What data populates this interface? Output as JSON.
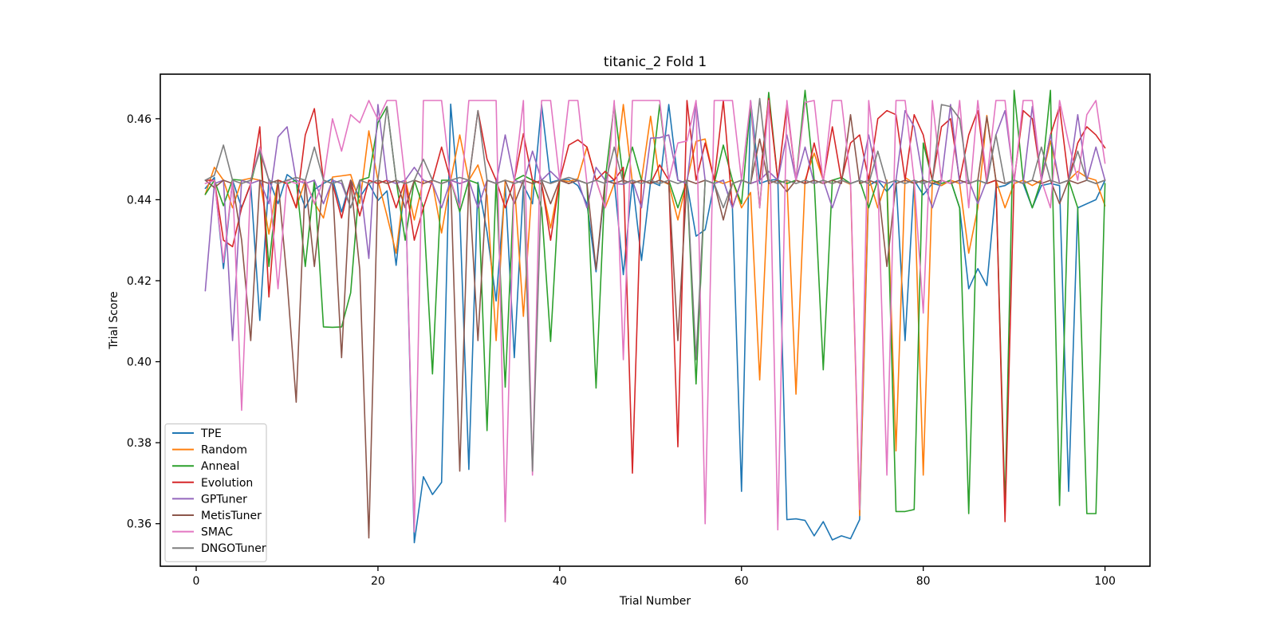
{
  "figure": {
    "title": "titanic_2 Fold 1",
    "xlabel": "Trial Number",
    "ylabel": "Trial Score"
  },
  "chart_data": {
    "type": "line",
    "title": "titanic_2 Fold 1",
    "xlabel": "Trial Number",
    "ylabel": "Trial Score",
    "grid": false,
    "legend_position": "lower left",
    "x_start": 1,
    "xlim": [
      -3.95,
      104.95
    ],
    "ylim": [
      0.3495,
      0.471
    ],
    "x_ticks": [
      0,
      20,
      40,
      60,
      80,
      100
    ],
    "y_ticks": [
      0.36,
      0.38,
      0.4,
      0.42,
      0.44,
      0.46
    ],
    "background": "#ffffff",
    "spine_color": "#000000",
    "legend_edge_color": "#cccccc",
    "series": [
      {
        "name": "TPE",
        "color": "#1f77b4",
        "values": [
          0.4428,
          0.4455,
          0.423,
          0.4448,
          0.438,
          0.4438,
          0.4102,
          0.4451,
          0.439,
          0.4462,
          0.4445,
          0.438,
          0.4425,
          0.444,
          0.4452,
          0.437,
          0.4448,
          0.4406,
          0.444,
          0.4398,
          0.4422,
          0.4238,
          0.4448,
          0.3553,
          0.3716,
          0.3672,
          0.3702,
          0.4636,
          0.437,
          0.3734,
          0.4443,
          0.432,
          0.415,
          0.4436,
          0.401,
          0.4436,
          0.439,
          0.4635,
          0.4443,
          0.4449,
          0.445,
          0.4435,
          0.439,
          0.4222,
          0.4442,
          0.4448,
          0.4215,
          0.4448,
          0.425,
          0.4445,
          0.4435,
          0.4635,
          0.4448,
          0.444,
          0.431,
          0.4326,
          0.444,
          0.4448,
          0.438,
          0.368,
          0.4645,
          0.444,
          0.4448,
          0.445,
          0.361,
          0.3612,
          0.3608,
          0.357,
          0.3605,
          0.356,
          0.357,
          0.3563,
          0.361,
          0.4435,
          0.4448,
          0.442,
          0.4448,
          0.4052,
          0.4448,
          0.4412,
          0.444,
          0.4435,
          0.4448,
          0.438,
          0.418,
          0.423,
          0.4188,
          0.443,
          0.4435,
          0.4448,
          0.444,
          0.438,
          0.4435,
          0.444,
          0.4435,
          0.368,
          0.438,
          0.439,
          0.44,
          0.4448
        ]
      },
      {
        "name": "Random",
        "color": "#ff7f0e",
        "values": [
          0.4413,
          0.448,
          0.4448,
          0.438,
          0.4448,
          0.4453,
          0.4448,
          0.4315,
          0.4448,
          0.4439,
          0.438,
          0.4448,
          0.4392,
          0.4355,
          0.4456,
          0.4459,
          0.4462,
          0.4391,
          0.457,
          0.4448,
          0.436,
          0.4268,
          0.4452,
          0.435,
          0.4448,
          0.4441,
          0.4318,
          0.4448,
          0.456,
          0.4448,
          0.4486,
          0.441,
          0.4052,
          0.4448,
          0.4442,
          0.4112,
          0.4448,
          0.4438,
          0.433,
          0.4448,
          0.4445,
          0.4452,
          0.453,
          0.4448,
          0.438,
          0.444,
          0.4635,
          0.4442,
          0.4448,
          0.4606,
          0.4448,
          0.4438,
          0.435,
          0.4448,
          0.4544,
          0.455,
          0.4448,
          0.444,
          0.4448,
          0.438,
          0.4418,
          0.3955,
          0.4448,
          0.444,
          0.4448,
          0.392,
          0.4448,
          0.4515,
          0.4448,
          0.444,
          0.4448,
          0.4438,
          0.362,
          0.4455,
          0.438,
          0.4448,
          0.378,
          0.4455,
          0.444,
          0.372,
          0.4448,
          0.4435,
          0.4448,
          0.444,
          0.4268,
          0.438,
          0.4608,
          0.4448,
          0.438,
          0.444,
          0.4448,
          0.4435,
          0.4448,
          0.4545,
          0.444,
          0.4448,
          0.447,
          0.4455,
          0.4448,
          0.4385
        ]
      },
      {
        "name": "Anneal",
        "color": "#2ca02c",
        "values": [
          0.4413,
          0.4448,
          0.4385,
          0.445,
          0.4448,
          0.444,
          0.4528,
          0.4235,
          0.4448,
          0.444,
          0.4448,
          0.4235,
          0.4448,
          0.4086,
          0.4085,
          0.4086,
          0.417,
          0.4448,
          0.4455,
          0.459,
          0.463,
          0.4448,
          0.43,
          0.4448,
          0.438,
          0.397,
          0.4448,
          0.4448,
          0.437,
          0.4448,
          0.444,
          0.383,
          0.4448,
          0.3937,
          0.4448,
          0.446,
          0.4448,
          0.438,
          0.405,
          0.4448,
          0.444,
          0.4448,
          0.444,
          0.3935,
          0.4448,
          0.4635,
          0.4448,
          0.453,
          0.4448,
          0.444,
          0.4635,
          0.4448,
          0.438,
          0.4448,
          0.3945,
          0.4448,
          0.444,
          0.4535,
          0.4448,
          0.439,
          0.4635,
          0.438,
          0.4665,
          0.4448,
          0.444,
          0.4448,
          0.467,
          0.4448,
          0.398,
          0.4448,
          0.4455,
          0.444,
          0.4448,
          0.438,
          0.4448,
          0.444,
          0.363,
          0.363,
          0.3635,
          0.454,
          0.4448,
          0.444,
          0.4448,
          0.438,
          0.3625,
          0.4448,
          0.444,
          0.4448,
          0.364,
          0.467,
          0.4448,
          0.438,
          0.4448,
          0.467,
          0.3645,
          0.4448,
          0.438,
          0.3625,
          0.3625,
          0.444
        ]
      },
      {
        "name": "Evolution",
        "color": "#d62728",
        "values": [
          0.4448,
          0.4448,
          0.43,
          0.4284,
          0.438,
          0.444,
          0.458,
          0.416,
          0.4448,
          0.444,
          0.438,
          0.456,
          0.4625,
          0.4448,
          0.444,
          0.4355,
          0.4448,
          0.436,
          0.4448,
          0.444,
          0.4448,
          0.438,
          0.4448,
          0.43,
          0.438,
          0.4448,
          0.453,
          0.4448,
          0.444,
          0.4448,
          0.462,
          0.45,
          0.4448,
          0.438,
          0.4448,
          0.4563,
          0.4448,
          0.444,
          0.43,
          0.4448,
          0.4535,
          0.4548,
          0.453,
          0.4448,
          0.447,
          0.4448,
          0.448,
          0.3725,
          0.4448,
          0.444,
          0.4486,
          0.4448,
          0.379,
          0.4645,
          0.4448,
          0.454,
          0.4448,
          0.4645,
          0.438,
          0.4448,
          0.444,
          0.4448,
          0.465,
          0.4448,
          0.4635,
          0.4448,
          0.444,
          0.454,
          0.4448,
          0.458,
          0.4448,
          0.454,
          0.456,
          0.4448,
          0.46,
          0.462,
          0.461,
          0.4448,
          0.461,
          0.456,
          0.4448,
          0.458,
          0.46,
          0.4448,
          0.456,
          0.462,
          0.444,
          0.4448,
          0.3605,
          0.4448,
          0.462,
          0.46,
          0.4448,
          0.456,
          0.463,
          0.4448,
          0.454,
          0.458,
          0.456,
          0.4528
        ]
      },
      {
        "name": "GPTuner",
        "color": "#9467bd",
        "values": [
          0.4175,
          0.444,
          0.4448,
          0.4052,
          0.4448,
          0.444,
          0.4448,
          0.439,
          0.4555,
          0.458,
          0.4448,
          0.444,
          0.4448,
          0.439,
          0.4448,
          0.444,
          0.438,
          0.4448,
          0.4255,
          0.4635,
          0.4448,
          0.444,
          0.4448,
          0.448,
          0.4448,
          0.444,
          0.438,
          0.4448,
          0.444,
          0.4448,
          0.438,
          0.4448,
          0.444,
          0.456,
          0.4448,
          0.444,
          0.452,
          0.4448,
          0.447,
          0.4448,
          0.444,
          0.4448,
          0.438,
          0.448,
          0.4448,
          0.444,
          0.4438,
          0.4448,
          0.438,
          0.4552,
          0.4553,
          0.456,
          0.4448,
          0.444,
          0.464,
          0.4448,
          0.444,
          0.4448,
          0.438,
          0.4448,
          0.444,
          0.4448,
          0.447,
          0.4448,
          0.456,
          0.4448,
          0.453,
          0.444,
          0.4448,
          0.438,
          0.4448,
          0.444,
          0.4448,
          0.456,
          0.4448,
          0.444,
          0.4448,
          0.462,
          0.458,
          0.4448,
          0.438,
          0.4448,
          0.4635,
          0.444,
          0.4448,
          0.439,
          0.4448,
          0.456,
          0.462,
          0.4448,
          0.444,
          0.463,
          0.4448,
          0.456,
          0.444,
          0.4448,
          0.461,
          0.4448,
          0.453,
          0.4448
        ]
      },
      {
        "name": "MetisTuner",
        "color": "#8c564b",
        "values": [
          0.4448,
          0.443,
          0.4448,
          0.444,
          0.43,
          0.4052,
          0.4448,
          0.444,
          0.4448,
          0.42,
          0.39,
          0.4448,
          0.4235,
          0.4448,
          0.444,
          0.401,
          0.4448,
          0.4228,
          0.3565,
          0.4448,
          0.444,
          0.4448,
          0.438,
          0.4448,
          0.444,
          0.4448,
          0.444,
          0.4448,
          0.373,
          0.4448,
          0.4052,
          0.4448,
          0.444,
          0.4448,
          0.439,
          0.4448,
          0.444,
          0.4448,
          0.439,
          0.4448,
          0.444,
          0.4448,
          0.444,
          0.4228,
          0.4448,
          0.444,
          0.4448,
          0.444,
          0.4448,
          0.444,
          0.4448,
          0.444,
          0.4052,
          0.4448,
          0.444,
          0.4448,
          0.444,
          0.435,
          0.444,
          0.4448,
          0.444,
          0.455,
          0.444,
          0.4448,
          0.442,
          0.4448,
          0.444,
          0.4448,
          0.444,
          0.4448,
          0.444,
          0.461,
          0.444,
          0.4448,
          0.444,
          0.4235,
          0.444,
          0.4448,
          0.444,
          0.4448,
          0.444,
          0.4448,
          0.444,
          0.4448,
          0.444,
          0.4448,
          0.4605,
          0.4448,
          0.444,
          0.4448,
          0.444,
          0.4448,
          0.444,
          0.4448,
          0.439,
          0.4448,
          0.444,
          0.4448,
          0.444,
          0.4448
        ]
      },
      {
        "name": "SMAC",
        "color": "#e377c2",
        "values": [
          0.444,
          0.4448,
          0.4245,
          0.4448,
          0.388,
          0.4448,
          0.453,
          0.4448,
          0.418,
          0.4448,
          0.444,
          0.4448,
          0.439,
          0.4448,
          0.46,
          0.452,
          0.461,
          0.459,
          0.4645,
          0.4598,
          0.4645,
          0.4645,
          0.4448,
          0.358,
          0.4645,
          0.4645,
          0.4645,
          0.4448,
          0.438,
          0.4645,
          0.4645,
          0.4645,
          0.4645,
          0.3605,
          0.4448,
          0.4645,
          0.372,
          0.4645,
          0.4645,
          0.4448,
          0.4645,
          0.4645,
          0.444,
          0.4448,
          0.438,
          0.4645,
          0.4005,
          0.4645,
          0.4645,
          0.4645,
          0.4645,
          0.4448,
          0.454,
          0.4545,
          0.4645,
          0.36,
          0.4645,
          0.4645,
          0.4645,
          0.4448,
          0.4645,
          0.438,
          0.4645,
          0.3585,
          0.4645,
          0.4448,
          0.464,
          0.4645,
          0.444,
          0.4645,
          0.4645,
          0.4448,
          0.3635,
          0.4645,
          0.4448,
          0.372,
          0.4645,
          0.4645,
          0.4448,
          0.412,
          0.4645,
          0.4448,
          0.444,
          0.4645,
          0.438,
          0.4645,
          0.4448,
          0.4645,
          0.4645,
          0.444,
          0.4645,
          0.4645,
          0.4448,
          0.438,
          0.4645,
          0.454,
          0.4448,
          0.461,
          0.4645,
          0.449
        ]
      },
      {
        "name": "DNGOTuner",
        "color": "#7f7f7f",
        "values": [
          0.4448,
          0.446,
          0.4535,
          0.4448,
          0.444,
          0.4448,
          0.452,
          0.4448,
          0.444,
          0.4448,
          0.4455,
          0.4448,
          0.453,
          0.4448,
          0.444,
          0.4448,
          0.438,
          0.4448,
          0.444,
          0.4448,
          0.463,
          0.4448,
          0.444,
          0.4448,
          0.45,
          0.4448,
          0.444,
          0.4448,
          0.4455,
          0.4448,
          0.462,
          0.4448,
          0.444,
          0.4448,
          0.444,
          0.4448,
          0.373,
          0.4448,
          0.444,
          0.4448,
          0.4455,
          0.4448,
          0.444,
          0.4448,
          0.444,
          0.453,
          0.444,
          0.4448,
          0.444,
          0.4448,
          0.444,
          0.4448,
          0.444,
          0.4448,
          0.4005,
          0.4448,
          0.444,
          0.438,
          0.444,
          0.4448,
          0.444,
          0.465,
          0.4448,
          0.444,
          0.4448,
          0.444,
          0.4448,
          0.444,
          0.4448,
          0.444,
          0.4448,
          0.444,
          0.4448,
          0.444,
          0.452,
          0.444,
          0.4448,
          0.444,
          0.4448,
          0.444,
          0.4448,
          0.4635,
          0.463,
          0.46,
          0.444,
          0.4448,
          0.444,
          0.456,
          0.444,
          0.4448,
          0.444,
          0.4448,
          0.453,
          0.4448,
          0.444,
          0.4448,
          0.452,
          0.4448,
          0.444,
          0.4448
        ]
      }
    ]
  }
}
